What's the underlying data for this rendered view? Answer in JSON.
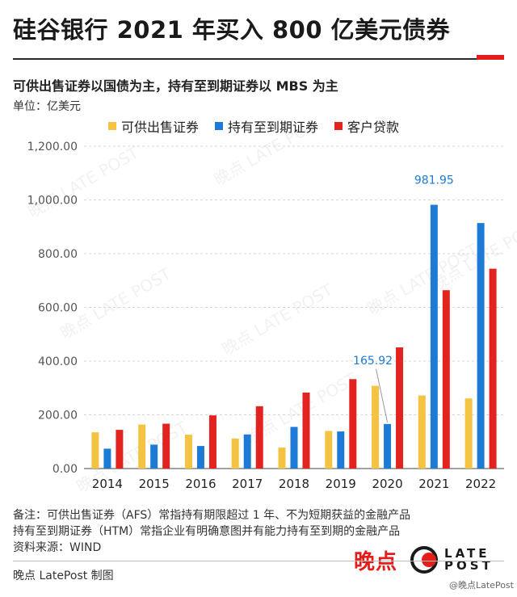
{
  "header": {
    "title": "硅谷银行 2021 年买入 800 亿美元债券",
    "subtitle": "可供出售证券以国债为主，持有至到期证券以  MBS 为主",
    "unit": "单位：亿美元"
  },
  "colors": {
    "afs": "#f5c342",
    "htm": "#1d7bd6",
    "loans": "#e3231f",
    "accent": "#e31d1a",
    "annotation": "#1d7bd6"
  },
  "chart_data": {
    "type": "bar",
    "categories": [
      "2014",
      "2015",
      "2016",
      "2017",
      "2018",
      "2019",
      "2020",
      "2021",
      "2022"
    ],
    "series": [
      {
        "name": "可供出售证券",
        "values": [
          135,
          164,
          126,
          112,
          78,
          140,
          308,
          272,
          261
        ]
      },
      {
        "name": "持有至到期证券",
        "values": [
          74,
          89,
          84,
          127,
          155,
          138,
          165.92,
          981.95,
          914
        ]
      },
      {
        "name": "客户贷款",
        "values": [
          144,
          167,
          198,
          232,
          283,
          333,
          451,
          664,
          744
        ]
      }
    ],
    "ylim": [
      0,
      1200
    ],
    "yticks": [
      0,
      200,
      400,
      600,
      800,
      1000,
      1200
    ],
    "ytick_labels": [
      "0.00",
      "200.00",
      "400.00",
      "600.00",
      "800.00",
      "1,000.00",
      "1,200.00"
    ],
    "grid": true,
    "legend_position": "top",
    "annotations": [
      {
        "category": "2020",
        "series": 1,
        "value": 165.92,
        "text": "165.92"
      },
      {
        "category": "2021",
        "series": 1,
        "value": 981.95,
        "text": "981.95"
      }
    ]
  },
  "notes": [
    "备注：可供出售证券（AFS）常指持有期限超过 1 年、不为短期获益的金融产品",
    "持有至到期证券（HTM）常指企业有明确意图并有能力持有至到期的金融产品",
    "资料来源：WIND"
  ],
  "credit": "晚点 LatePost 制图",
  "brand": {
    "cn": "晚点",
    "en_line1": "LATE",
    "en_line2": "POST",
    "weibo": "@晚点LatePost"
  },
  "watermark": {
    "cn": "晚点",
    "en": "LATE POST"
  }
}
